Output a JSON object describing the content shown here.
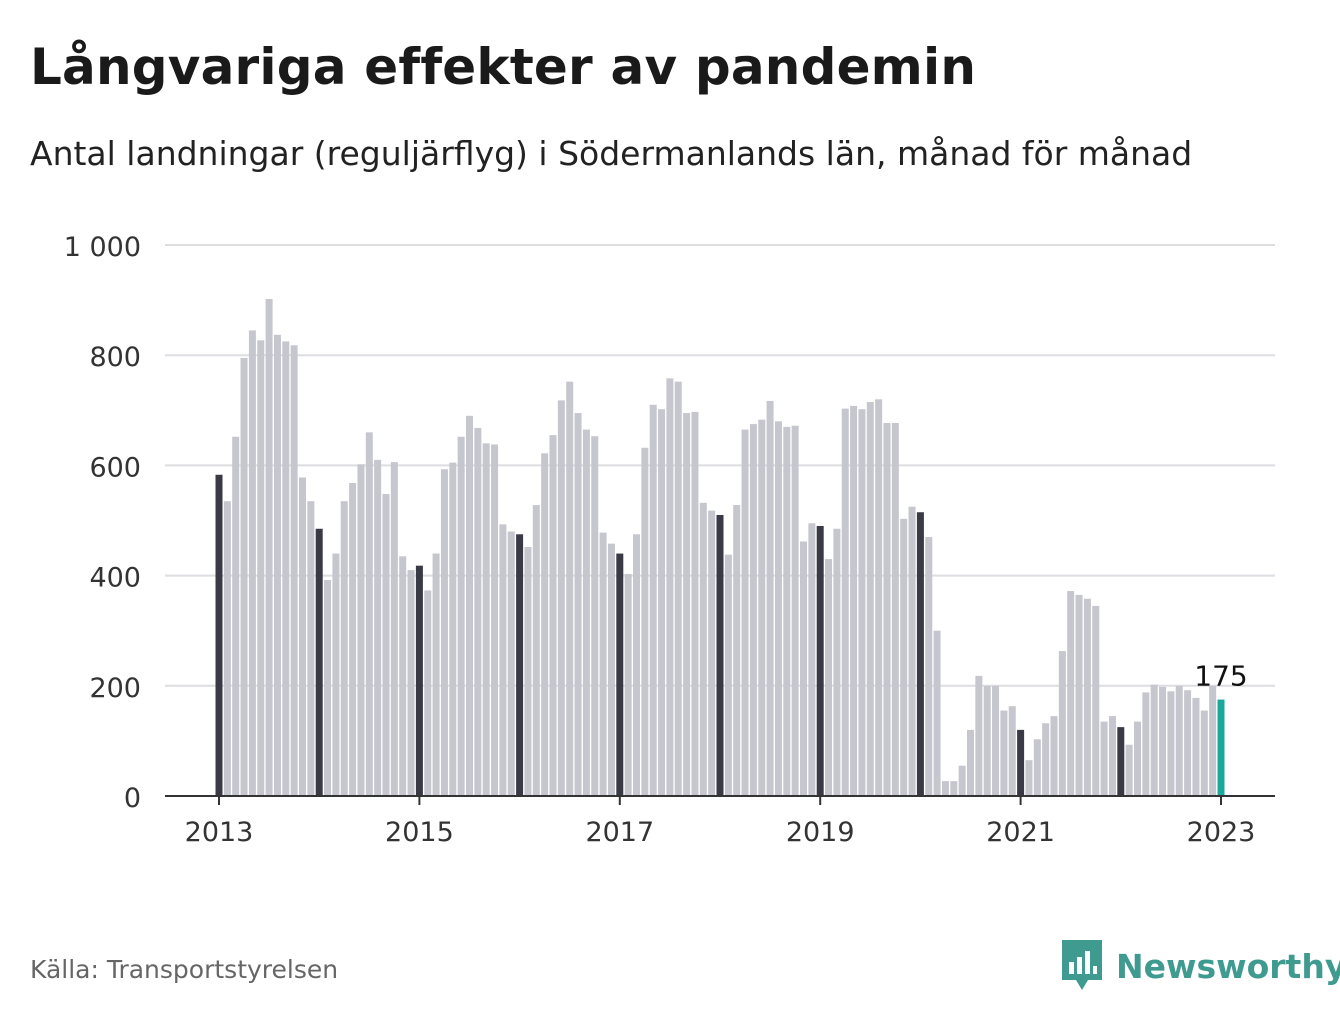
{
  "title": "Långvariga effekter av pandemin",
  "subtitle": "Antal landningar (reguljärflyg) i Södermanlands län, månad för månad",
  "footer": {
    "source": "Källa: Transportstyrelsen",
    "brand_name": "Newsworthy",
    "brand_icon": "newsworthy-logo-icon"
  },
  "chart_data": {
    "type": "bar",
    "x_start": "2013-01",
    "frequency": "monthly",
    "ylim": [
      0,
      1000
    ],
    "yticks": [
      0,
      200,
      400,
      600,
      800,
      1000
    ],
    "ytick_labels": [
      "0",
      "200",
      "400",
      "600",
      "800",
      "1 000"
    ],
    "xticks": [
      "2013-01",
      "2015-01",
      "2017-01",
      "2019-01",
      "2021-01",
      "2023-01"
    ],
    "xtick_labels": [
      "2013",
      "2015",
      "2017",
      "2019",
      "2021",
      "2023"
    ],
    "highlight_label": "175",
    "colors": {
      "default": "#c6c6ce",
      "january": "#3a3a46",
      "latest": "#1aa89a",
      "grid": "#dedee2",
      "axis": "#333333"
    },
    "values": [
      583,
      535,
      652,
      795,
      845,
      827,
      902,
      837,
      825,
      818,
      578,
      535,
      485,
      392,
      440,
      535,
      568,
      602,
      660,
      610,
      548,
      606,
      435,
      410,
      418,
      373,
      440,
      593,
      605,
      652,
      690,
      668,
      640,
      638,
      493,
      480,
      475,
      452,
      528,
      622,
      655,
      718,
      752,
      695,
      665,
      653,
      478,
      458,
      440,
      403,
      475,
      632,
      710,
      702,
      758,
      752,
      695,
      697,
      532,
      518,
      510,
      438,
      528,
      665,
      675,
      683,
      717,
      680,
      670,
      672,
      462,
      495,
      490,
      430,
      485,
      703,
      708,
      702,
      715,
      720,
      677,
      677,
      503,
      525,
      515,
      470,
      300,
      27,
      27,
      55,
      120,
      218,
      200,
      200,
      155,
      163,
      120,
      65,
      103,
      132,
      145,
      263,
      372,
      365,
      358,
      345,
      135,
      145,
      125,
      93,
      135,
      188,
      202,
      198,
      190,
      200,
      192,
      178,
      155,
      200,
      175
    ]
  }
}
